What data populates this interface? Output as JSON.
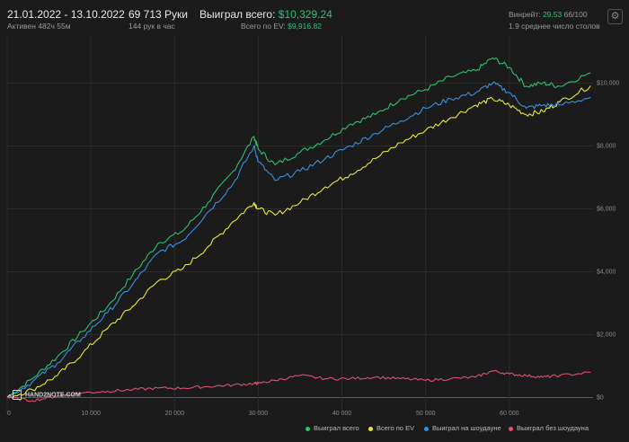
{
  "header": {
    "date_range": "21.01.2022 - 13.10.2022",
    "active": "Активен 482ч 55м",
    "hands": "69 713 Руки",
    "hands_per_hour": "144 рук в час",
    "won_label": "Выиграл всего:",
    "won_value": "$10,329.24",
    "ev_label": "Всего по EV:",
    "ev_value": "$9,916.82",
    "winrate_label": "Винрейт:",
    "winrate_value": "29.53",
    "winrate_suffix": "66/100",
    "tables": "1.9 среднее число столов",
    "settings_icon": "gear-icon"
  },
  "logo": "HAND2NOTE.COM",
  "colors": {
    "background": "#1b1b1b",
    "won": "#2fbf71",
    "ev": "#e8e83a",
    "showdown": "#3a8fe0",
    "nonshowdown": "#e0506e"
  },
  "chart_data": {
    "type": "line",
    "xlabel": "",
    "ylabel": "",
    "xlim": [
      0,
      70000
    ],
    "ylim": [
      -500,
      11500
    ],
    "x_ticks": [
      0,
      10000,
      20000,
      30000,
      40000,
      50000,
      60000
    ],
    "x_tick_labels": [
      "0",
      "10 000",
      "20 000",
      "30 000",
      "40 000",
      "50 000",
      "60 000"
    ],
    "y_ticks": [
      0,
      2000,
      4000,
      6000,
      8000,
      10000
    ],
    "y_tick_labels": [
      "$0",
      "$2,000",
      "$4,000",
      "$6,000",
      "$8,000",
      "$10,000"
    ],
    "grid": true,
    "legend_position": "bottom-right",
    "x": [
      0,
      3000,
      6000,
      9000,
      12000,
      15000,
      18000,
      21000,
      24000,
      27000,
      29500,
      30000,
      32000,
      35000,
      38000,
      41000,
      44000,
      47000,
      50000,
      53000,
      56000,
      58000,
      60000,
      62000,
      64000,
      66000,
      69713
    ],
    "series": [
      {
        "name": "Выиграл всего",
        "values": [
          0,
          600,
          1300,
          2100,
          2900,
          3900,
          4900,
          5300,
          6200,
          7200,
          8300,
          7900,
          7400,
          7800,
          8200,
          8700,
          9000,
          9500,
          9800,
          10200,
          10400,
          10800,
          10500,
          9900,
          10000,
          9900,
          10329
        ]
      },
      {
        "name": "Всего по EV",
        "values": [
          0,
          250,
          700,
          1400,
          2200,
          2900,
          3700,
          4100,
          4800,
          5600,
          6200,
          6000,
          5800,
          6200,
          6700,
          7100,
          7600,
          8100,
          8500,
          8900,
          9300,
          9500,
          9300,
          9000,
          9100,
          9400,
          9917
        ]
      },
      {
        "name": "Выиграл на шоудауне",
        "values": [
          0,
          500,
          1100,
          1900,
          2700,
          3600,
          4600,
          5000,
          5900,
          6800,
          8000,
          7500,
          6900,
          7200,
          7600,
          8000,
          8400,
          8800,
          9200,
          9500,
          9700,
          10000,
          9700,
          9200,
          9300,
          9300,
          9550
        ]
      },
      {
        "name": "Выиграл без шоудауна",
        "values": [
          0,
          -100,
          50,
          150,
          200,
          250,
          300,
          300,
          350,
          400,
          450,
          450,
          550,
          700,
          600,
          600,
          650,
          600,
          550,
          600,
          650,
          850,
          750,
          700,
          650,
          700,
          800
        ]
      }
    ]
  }
}
